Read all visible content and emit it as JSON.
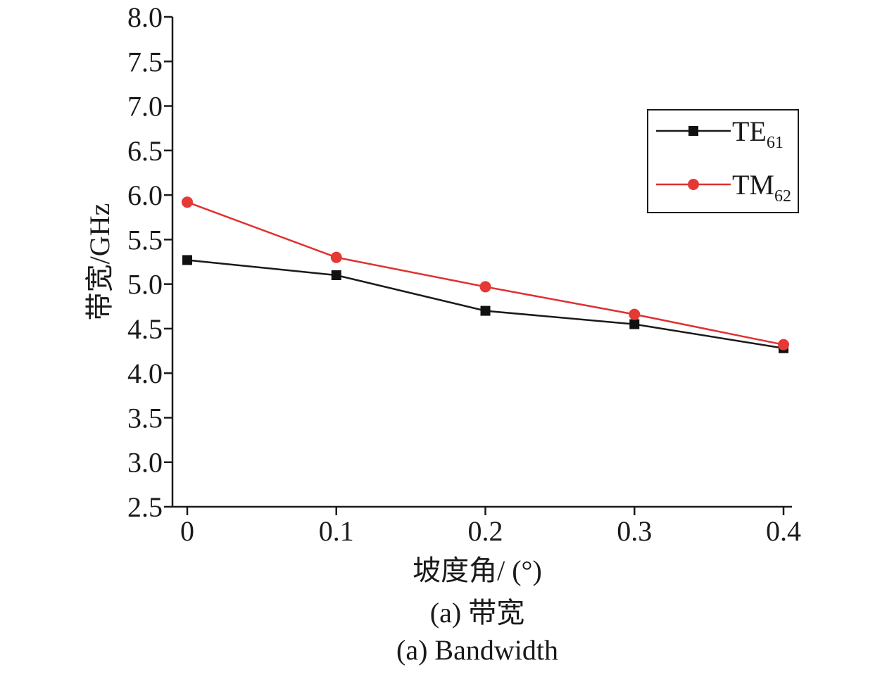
{
  "chart_data": {
    "type": "line",
    "x": [
      0,
      0.1,
      0.2,
      0.3,
      0.4
    ],
    "x_tick_labels": [
      "0",
      "0.1",
      "0.2",
      "0.3",
      "0.4"
    ],
    "y_tick_labels": [
      "2.5",
      "3.0",
      "3.5",
      "4.0",
      "4.5",
      "5.0",
      "5.5",
      "6.0",
      "6.5",
      "7.0",
      "7.5",
      "8.0"
    ],
    "xlim": [
      -0.01,
      0.4
    ],
    "ylim": [
      2.5,
      8.0
    ],
    "xlabel": "坡度角/ (°)",
    "ylabel": "带宽/GHz",
    "grid": false,
    "legend_position": "top-right",
    "series": [
      {
        "name": "TE",
        "name_subscript": "61",
        "marker": "square",
        "line_color": "#1a1a1a",
        "marker_color": "#111111",
        "values": [
          5.27,
          5.1,
          4.7,
          4.55,
          4.28
        ]
      },
      {
        "name": "TM",
        "name_subscript": "62",
        "marker": "circle",
        "line_color": "#e03030",
        "marker_color": "#e53935",
        "values": [
          5.92,
          5.3,
          4.97,
          4.66,
          4.32
        ]
      }
    ]
  },
  "captions": {
    "zh": "(a) 带宽",
    "en": "(a) Bandwidth"
  }
}
